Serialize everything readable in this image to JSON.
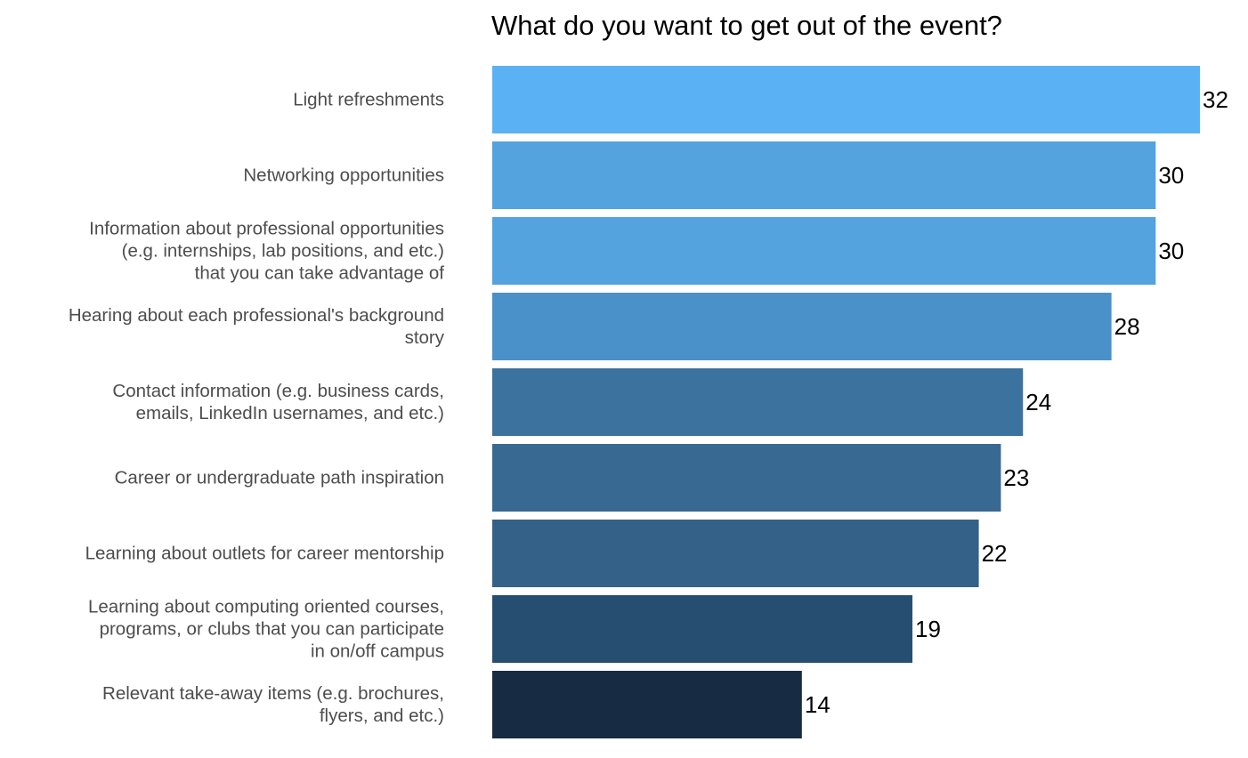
{
  "chart_data": {
    "type": "bar",
    "orientation": "horizontal",
    "title": "What do you want to get out of the event?",
    "xlabel": "",
    "ylabel": "",
    "xlim": [
      0,
      32
    ],
    "grid": false,
    "legend": "none",
    "categories": [
      [
        "Light refreshments"
      ],
      [
        "Networking opportunities"
      ],
      [
        "Information about professional opportunities",
        "(e.g. internships, lab positions, and etc.)",
        "that you can take advantage of"
      ],
      [
        "Hearing about each professional's background",
        "story"
      ],
      [
        "Contact information (e.g. business cards,",
        "emails, LinkedIn usernames, and etc.)"
      ],
      [
        "Career or undergraduate path inspiration"
      ],
      [
        "Learning about outlets for career mentorship"
      ],
      [
        "Learning about computing oriented courses,",
        "programs, or clubs that you can participate",
        "in on/off campus"
      ],
      [
        "Relevant take-away items (e.g. brochures,",
        "flyers, and etc.)"
      ]
    ],
    "values": [
      32,
      30,
      30,
      28,
      24,
      23,
      22,
      19,
      14
    ],
    "colors": [
      "#5AB2F4",
      "#54A2DE",
      "#54A2DE",
      "#4A90C9",
      "#3C729E",
      "#386993",
      "#336187",
      "#264E70",
      "#172B42"
    ]
  }
}
